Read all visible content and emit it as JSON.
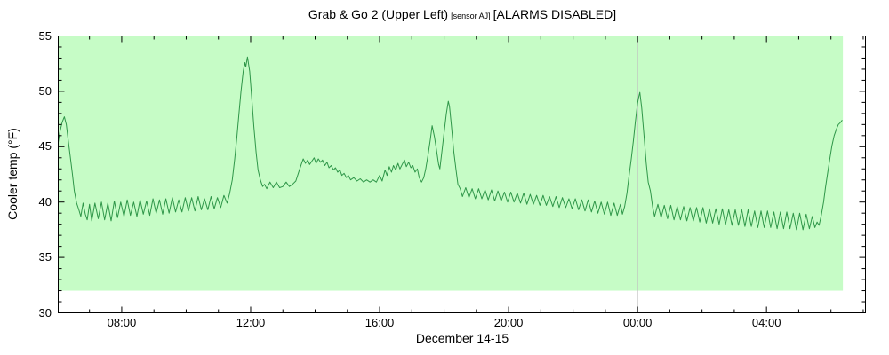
{
  "chart_data": {
    "type": "line",
    "title_main": "Grab & Go 2 (Upper Left)",
    "title_sensor": "[sensor AJ]",
    "title_alarms": "[ALARMS DISABLED]",
    "xlabel": "December 14-15",
    "ylabel": "Cooler temp (°F)",
    "ylim": [
      30,
      55
    ],
    "y_major_ticks": [
      30,
      35,
      40,
      45,
      50,
      55
    ],
    "y_minor_step": 1,
    "x_ticks": [
      {
        "hour": 8,
        "label": "08:00"
      },
      {
        "hour": 12,
        "label": "12:00"
      },
      {
        "hour": 16,
        "label": "16:00"
      },
      {
        "hour": 20,
        "label": "20:00"
      },
      {
        "hour": 24,
        "label": "00:00"
      },
      {
        "hour": 28,
        "label": "04:00"
      }
    ],
    "x_minor_step_hours": 1,
    "x_range_hours": [
      6.03,
      31.07
    ],
    "x_unit": "decimal hours since Dec 14 00:00; values >= 24 are Dec 15",
    "grid": "off",
    "legend": "none",
    "line_color": "#2e9648",
    "axis_color": "#000000",
    "safe_band": {
      "temp_min": 32,
      "temp_max": 55,
      "t_start": 6.03,
      "t_end": 30.37,
      "color": "#c6fcc6"
    },
    "midnight_line": {
      "hour": 24,
      "color": "#c0c0c0"
    },
    "series": [
      {
        "name": "Cooler temp",
        "points": [
          [
            6.03,
            45.4
          ],
          [
            6.08,
            46.3
          ],
          [
            6.15,
            47.2
          ],
          [
            6.22,
            47.7
          ],
          [
            6.28,
            47.0
          ],
          [
            6.33,
            45.8
          ],
          [
            6.4,
            44.2
          ],
          [
            6.47,
            42.5
          ],
          [
            6.53,
            41.0
          ],
          [
            6.6,
            39.9
          ],
          [
            6.67,
            39.3
          ],
          [
            6.73,
            38.7
          ],
          [
            6.8,
            39.9
          ],
          [
            6.87,
            38.9
          ],
          [
            6.93,
            38.4
          ],
          [
            7.0,
            39.8
          ],
          [
            7.07,
            38.3
          ],
          [
            7.17,
            39.9
          ],
          [
            7.27,
            38.5
          ],
          [
            7.37,
            40.0
          ],
          [
            7.47,
            38.4
          ],
          [
            7.57,
            39.9
          ],
          [
            7.67,
            38.3
          ],
          [
            7.77,
            40.1
          ],
          [
            7.87,
            38.6
          ],
          [
            7.97,
            40.0
          ],
          [
            8.07,
            38.7
          ],
          [
            8.17,
            40.2
          ],
          [
            8.27,
            38.8
          ],
          [
            8.37,
            40.0
          ],
          [
            8.47,
            38.7
          ],
          [
            8.57,
            40.2
          ],
          [
            8.67,
            38.9
          ],
          [
            8.77,
            40.1
          ],
          [
            8.87,
            38.8
          ],
          [
            8.97,
            40.3
          ],
          [
            9.07,
            39.0
          ],
          [
            9.17,
            40.2
          ],
          [
            9.27,
            38.9
          ],
          [
            9.37,
            40.3
          ],
          [
            9.47,
            39.0
          ],
          [
            9.57,
            40.4
          ],
          [
            9.67,
            39.1
          ],
          [
            9.77,
            40.2
          ],
          [
            9.87,
            39.1
          ],
          [
            9.97,
            40.4
          ],
          [
            10.07,
            39.2
          ],
          [
            10.17,
            40.4
          ],
          [
            10.27,
            39.2
          ],
          [
            10.37,
            40.5
          ],
          [
            10.47,
            39.3
          ],
          [
            10.57,
            40.3
          ],
          [
            10.67,
            39.3
          ],
          [
            10.77,
            40.5
          ],
          [
            10.87,
            39.4
          ],
          [
            10.97,
            40.4
          ],
          [
            11.07,
            39.5
          ],
          [
            11.17,
            40.6
          ],
          [
            11.27,
            39.9
          ],
          [
            11.35,
            40.8
          ],
          [
            11.43,
            42.0
          ],
          [
            11.5,
            43.8
          ],
          [
            11.57,
            45.8
          ],
          [
            11.63,
            47.8
          ],
          [
            11.7,
            50.0
          ],
          [
            11.77,
            51.8
          ],
          [
            11.82,
            52.6
          ],
          [
            11.85,
            52.2
          ],
          [
            11.9,
            53.1
          ],
          [
            11.97,
            51.8
          ],
          [
            12.03,
            49.5
          ],
          [
            12.1,
            46.8
          ],
          [
            12.17,
            44.5
          ],
          [
            12.23,
            42.9
          ],
          [
            12.3,
            42.0
          ],
          [
            12.37,
            41.4
          ],
          [
            12.43,
            41.6
          ],
          [
            12.5,
            41.2
          ],
          [
            12.6,
            41.8
          ],
          [
            12.7,
            41.3
          ],
          [
            12.8,
            41.8
          ],
          [
            12.9,
            41.3
          ],
          [
            13.0,
            41.4
          ],
          [
            13.1,
            41.8
          ],
          [
            13.2,
            41.4
          ],
          [
            13.3,
            41.6
          ],
          [
            13.4,
            41.9
          ],
          [
            13.5,
            42.8
          ],
          [
            13.57,
            43.4
          ],
          [
            13.63,
            43.9
          ],
          [
            13.7,
            43.5
          ],
          [
            13.77,
            43.8
          ],
          [
            13.83,
            43.4
          ],
          [
            13.9,
            43.7
          ],
          [
            13.97,
            44.0
          ],
          [
            14.03,
            43.5
          ],
          [
            14.1,
            43.9
          ],
          [
            14.17,
            43.6
          ],
          [
            14.23,
            43.8
          ],
          [
            14.3,
            43.3
          ],
          [
            14.37,
            43.6
          ],
          [
            14.43,
            43.1
          ],
          [
            14.5,
            43.3
          ],
          [
            14.57,
            42.9
          ],
          [
            14.63,
            43.1
          ],
          [
            14.7,
            42.7
          ],
          [
            14.77,
            42.9
          ],
          [
            14.83,
            42.4
          ],
          [
            14.9,
            42.6
          ],
          [
            14.97,
            42.2
          ],
          [
            15.03,
            42.4
          ],
          [
            15.1,
            42.0
          ],
          [
            15.2,
            42.2
          ],
          [
            15.3,
            41.9
          ],
          [
            15.4,
            42.1
          ],
          [
            15.5,
            41.8
          ],
          [
            15.6,
            42.0
          ],
          [
            15.7,
            41.8
          ],
          [
            15.8,
            42.0
          ],
          [
            15.9,
            41.8
          ],
          [
            16.0,
            42.4
          ],
          [
            16.08,
            41.9
          ],
          [
            16.17,
            42.9
          ],
          [
            16.23,
            42.4
          ],
          [
            16.3,
            43.2
          ],
          [
            16.37,
            42.7
          ],
          [
            16.43,
            43.3
          ],
          [
            16.5,
            42.9
          ],
          [
            16.57,
            43.5
          ],
          [
            16.63,
            43.0
          ],
          [
            16.7,
            43.4
          ],
          [
            16.77,
            43.8
          ],
          [
            16.83,
            43.2
          ],
          [
            16.9,
            43.6
          ],
          [
            16.97,
            43.1
          ],
          [
            17.03,
            43.3
          ],
          [
            17.1,
            42.7
          ],
          [
            17.17,
            43.0
          ],
          [
            17.23,
            42.2
          ],
          [
            17.3,
            41.8
          ],
          [
            17.37,
            42.2
          ],
          [
            17.43,
            43.0
          ],
          [
            17.5,
            44.2
          ],
          [
            17.57,
            45.6
          ],
          [
            17.63,
            46.9
          ],
          [
            17.7,
            45.9
          ],
          [
            17.77,
            44.6
          ],
          [
            17.83,
            43.4
          ],
          [
            17.87,
            43.0
          ],
          [
            17.93,
            44.5
          ],
          [
            18.0,
            46.3
          ],
          [
            18.07,
            48.0
          ],
          [
            18.13,
            49.1
          ],
          [
            18.17,
            48.6
          ],
          [
            18.23,
            46.8
          ],
          [
            18.3,
            44.6
          ],
          [
            18.37,
            42.9
          ],
          [
            18.43,
            41.6
          ],
          [
            18.5,
            41.2
          ],
          [
            18.57,
            40.5
          ],
          [
            18.67,
            41.3
          ],
          [
            18.77,
            40.4
          ],
          [
            18.87,
            41.2
          ],
          [
            18.97,
            40.3
          ],
          [
            19.07,
            41.2
          ],
          [
            19.17,
            40.3
          ],
          [
            19.27,
            41.1
          ],
          [
            19.37,
            40.2
          ],
          [
            19.47,
            41.1
          ],
          [
            19.57,
            40.1
          ],
          [
            19.67,
            41.0
          ],
          [
            19.77,
            40.1
          ],
          [
            19.87,
            40.9
          ],
          [
            19.97,
            40.0
          ],
          [
            20.07,
            40.9
          ],
          [
            20.17,
            40.0
          ],
          [
            20.27,
            40.8
          ],
          [
            20.37,
            39.9
          ],
          [
            20.47,
            40.8
          ],
          [
            20.57,
            39.8
          ],
          [
            20.67,
            40.7
          ],
          [
            20.77,
            39.8
          ],
          [
            20.87,
            40.6
          ],
          [
            20.97,
            39.7
          ],
          [
            21.07,
            40.6
          ],
          [
            21.17,
            39.7
          ],
          [
            21.27,
            40.5
          ],
          [
            21.37,
            39.6
          ],
          [
            21.47,
            40.5
          ],
          [
            21.57,
            39.5
          ],
          [
            21.67,
            40.4
          ],
          [
            21.77,
            39.5
          ],
          [
            21.87,
            40.3
          ],
          [
            21.97,
            39.4
          ],
          [
            22.07,
            40.3
          ],
          [
            22.17,
            39.3
          ],
          [
            22.27,
            40.2
          ],
          [
            22.37,
            39.2
          ],
          [
            22.47,
            40.2
          ],
          [
            22.57,
            39.1
          ],
          [
            22.67,
            40.1
          ],
          [
            22.77,
            39.0
          ],
          [
            22.87,
            40.0
          ],
          [
            22.97,
            38.9
          ],
          [
            23.07,
            40.0
          ],
          [
            23.17,
            38.8
          ],
          [
            23.27,
            39.9
          ],
          [
            23.37,
            38.8
          ],
          [
            23.47,
            39.8
          ],
          [
            23.53,
            38.9
          ],
          [
            23.6,
            39.6
          ],
          [
            23.67,
            40.8
          ],
          [
            23.73,
            42.2
          ],
          [
            23.8,
            43.8
          ],
          [
            23.87,
            45.5
          ],
          [
            23.93,
            47.2
          ],
          [
            24.0,
            48.9
          ],
          [
            24.03,
            49.4
          ],
          [
            24.07,
            49.9
          ],
          [
            24.13,
            48.5
          ],
          [
            24.2,
            46.0
          ],
          [
            24.27,
            43.5
          ],
          [
            24.33,
            41.8
          ],
          [
            24.4,
            41.0
          ],
          [
            24.47,
            39.5
          ],
          [
            24.53,
            38.7
          ],
          [
            24.63,
            39.8
          ],
          [
            24.73,
            38.6
          ],
          [
            24.83,
            39.7
          ],
          [
            24.93,
            38.5
          ],
          [
            25.03,
            39.7
          ],
          [
            25.13,
            38.4
          ],
          [
            25.23,
            39.6
          ],
          [
            25.33,
            38.4
          ],
          [
            25.43,
            39.6
          ],
          [
            25.53,
            38.3
          ],
          [
            25.63,
            39.5
          ],
          [
            25.73,
            38.3
          ],
          [
            25.83,
            39.5
          ],
          [
            25.93,
            38.2
          ],
          [
            26.03,
            39.5
          ],
          [
            26.13,
            38.1
          ],
          [
            26.23,
            39.4
          ],
          [
            26.33,
            38.1
          ],
          [
            26.43,
            39.4
          ],
          [
            26.53,
            38.0
          ],
          [
            26.63,
            39.4
          ],
          [
            26.73,
            38.0
          ],
          [
            26.83,
            39.3
          ],
          [
            26.93,
            37.9
          ],
          [
            27.03,
            39.3
          ],
          [
            27.13,
            37.9
          ],
          [
            27.23,
            39.3
          ],
          [
            27.33,
            37.8
          ],
          [
            27.43,
            39.3
          ],
          [
            27.53,
            37.8
          ],
          [
            27.63,
            39.2
          ],
          [
            27.73,
            37.7
          ],
          [
            27.83,
            39.2
          ],
          [
            27.93,
            37.7
          ],
          [
            28.03,
            39.2
          ],
          [
            28.13,
            37.7
          ],
          [
            28.23,
            39.1
          ],
          [
            28.33,
            37.6
          ],
          [
            28.43,
            39.1
          ],
          [
            28.53,
            37.6
          ],
          [
            28.63,
            39.1
          ],
          [
            28.73,
            37.6
          ],
          [
            28.83,
            39.0
          ],
          [
            28.93,
            37.5
          ],
          [
            29.03,
            39.0
          ],
          [
            29.13,
            37.5
          ],
          [
            29.23,
            38.9
          ],
          [
            29.33,
            37.6
          ],
          [
            29.42,
            38.7
          ],
          [
            29.5,
            37.7
          ],
          [
            29.57,
            38.2
          ],
          [
            29.63,
            37.9
          ],
          [
            29.7,
            38.8
          ],
          [
            29.77,
            40.0
          ],
          [
            29.83,
            41.3
          ],
          [
            29.9,
            42.7
          ],
          [
            29.97,
            44.0
          ],
          [
            30.03,
            45.1
          ],
          [
            30.1,
            46.0
          ],
          [
            30.17,
            46.6
          ],
          [
            30.23,
            47.0
          ],
          [
            30.3,
            47.2
          ],
          [
            30.35,
            47.4
          ]
        ]
      }
    ]
  }
}
